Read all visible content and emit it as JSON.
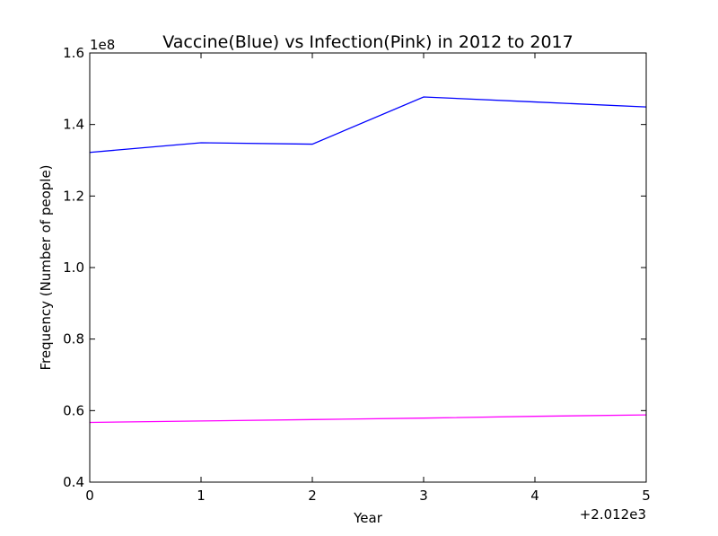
{
  "chart_data": {
    "type": "line",
    "title": "Vaccine(Blue) vs Infection(Pink) in 2012 to 2017",
    "xlabel": "Year",
    "ylabel": "Frequency (Number of people)",
    "x_offset_label": "+2.012e3",
    "y_scale_label": "1e8",
    "x": [
      0,
      1,
      2,
      3,
      4,
      5
    ],
    "xlim": [
      0,
      5
    ],
    "ylim": [
      0.4,
      1.6
    ],
    "x_ticks": [
      "0",
      "1",
      "2",
      "3",
      "4",
      "5"
    ],
    "y_ticks": [
      "0.4",
      "0.6",
      "0.8",
      "1.0",
      "1.2",
      "1.4",
      "1.6"
    ],
    "grid": false,
    "series": [
      {
        "color": "#0000ff",
        "values": [
          1.322,
          1.349,
          1.345,
          1.477,
          1.463,
          1.449
        ]
      },
      {
        "color": "#ff00ff",
        "values": [
          0.567,
          0.571,
          0.575,
          0.579,
          0.584,
          0.588
        ]
      }
    ]
  }
}
